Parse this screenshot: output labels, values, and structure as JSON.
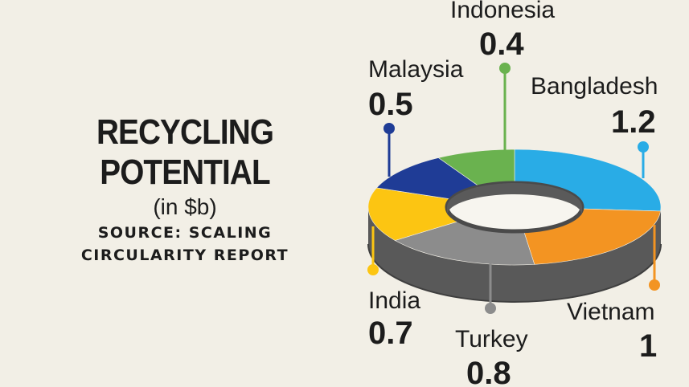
{
  "title": {
    "line1": "RECYCLING",
    "line2": "POTENTIAL",
    "subtitle": "(in $b)",
    "source_line1": "SOURCE: SCALING",
    "source_line2": "CIRCULARITY REPORT"
  },
  "chart_data": {
    "type": "pie",
    "variant": "3d-donut",
    "title": "RECYCLING POTENTIAL",
    "subtitle": "(in $b)",
    "source": "SOURCE: SCALING CIRCULARITY REPORT",
    "slices": [
      {
        "label": "Bangladesh",
        "value": 1.2,
        "display": "1.2",
        "color": "#29ace6"
      },
      {
        "label": "Vietnam",
        "value": 1,
        "display": "1",
        "color": "#f39422"
      },
      {
        "label": "Turkey",
        "value": 0.8,
        "display": "0.8",
        "color": "#8c8c8c"
      },
      {
        "label": "India",
        "value": 0.7,
        "display": "0.7",
        "color": "#fcc512"
      },
      {
        "label": "Malaysia",
        "value": 0.5,
        "display": "0.5",
        "color": "#1f3c96"
      },
      {
        "label": "Indonesia",
        "value": 0.4,
        "display": "0.4",
        "color": "#6ab24f"
      }
    ],
    "side_color": "#595959"
  }
}
